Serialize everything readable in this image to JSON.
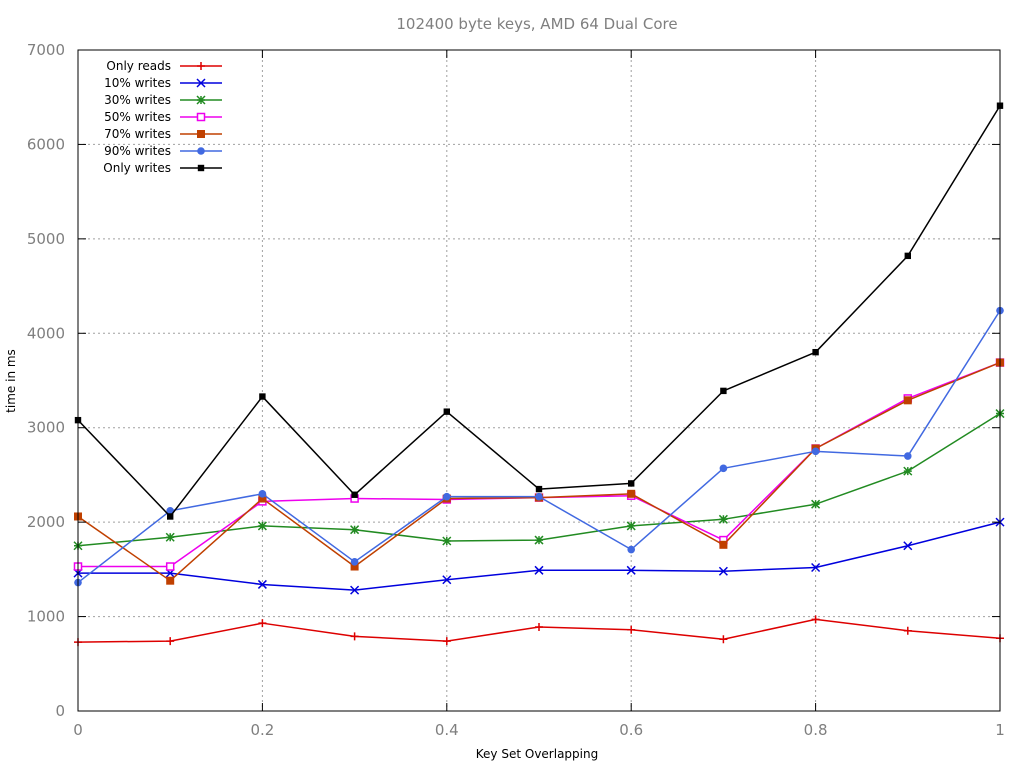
{
  "chart_data": {
    "type": "line",
    "title": "102400 byte keys, AMD 64 Dual Core",
    "xlabel": "Key Set Overlapping",
    "ylabel": "time in ms",
    "xlim": [
      0,
      1
    ],
    "ylim": [
      0,
      7000
    ],
    "x": [
      0,
      0.1,
      0.2,
      0.3,
      0.4,
      0.5,
      0.6,
      0.7,
      0.8,
      0.9,
      1.0
    ],
    "x_ticks": [
      "0",
      "0.2",
      "0.4",
      "0.6",
      "0.8",
      "1"
    ],
    "y_ticks": [
      "0",
      "1000",
      "2000",
      "3000",
      "4000",
      "5000",
      "6000",
      "7000"
    ],
    "grid": true,
    "legend_position": "top-left",
    "series": [
      {
        "name": "Only reads",
        "color": "#dd0000",
        "marker": "plus",
        "values": [
          730,
          740,
          930,
          790,
          740,
          890,
          860,
          760,
          970,
          850,
          770
        ]
      },
      {
        "name": "10% writes",
        "color": "#0000dd",
        "marker": "cross",
        "values": [
          1460,
          1460,
          1340,
          1280,
          1390,
          1490,
          1490,
          1480,
          1520,
          1750,
          2000
        ]
      },
      {
        "name": "30% writes",
        "color": "#228b22",
        "marker": "star",
        "values": [
          1750,
          1840,
          1960,
          1920,
          1800,
          1810,
          1960,
          2030,
          2190,
          2540,
          3150
        ]
      },
      {
        "name": "50% writes",
        "color": "#ee00ee",
        "marker": "open-square",
        "values": [
          1530,
          1530,
          2220,
          2250,
          2240,
          2260,
          2280,
          1810,
          2780,
          3310,
          3690
        ]
      },
      {
        "name": "70% writes",
        "color": "#c04000",
        "marker": "filled-square",
        "values": [
          2060,
          1380,
          2250,
          1530,
          2250,
          2260,
          2300,
          1760,
          2780,
          3290,
          3690
        ]
      },
      {
        "name": "90% writes",
        "color": "#4169e1",
        "marker": "filled-circle",
        "values": [
          1360,
          2120,
          2300,
          1580,
          2270,
          2270,
          1710,
          2570,
          2750,
          2700,
          4240
        ]
      },
      {
        "name": "Only writes",
        "color": "#000000",
        "marker": "filled-diamond",
        "values": [
          3080,
          2060,
          3330,
          2290,
          3170,
          2350,
          2410,
          3390,
          3800,
          4820,
          6410
        ]
      }
    ]
  }
}
